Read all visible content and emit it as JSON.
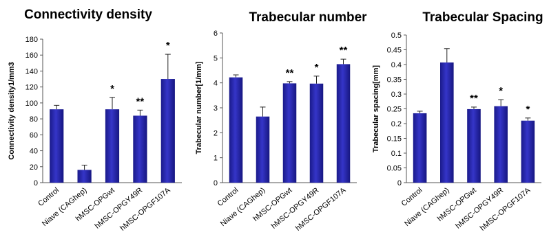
{
  "chart_data": [
    {
      "type": "bar",
      "title": "Connectivity density",
      "ylabel": "Connectivity density1/mm3",
      "categories": [
        "Control",
        "Niave (CAGhep)",
        "hMSC-OPGwt",
        "hMSC-OPGY49R",
        "hMSC-OPGF107A"
      ],
      "values": [
        92,
        16,
        92,
        84,
        130
      ],
      "errors": [
        5,
        6,
        15,
        7,
        31
      ],
      "significance": [
        "",
        "",
        "*",
        "**",
        "*"
      ],
      "ylim": [
        0,
        180
      ],
      "yticks": [
        "0",
        "20",
        "40",
        "60",
        "80",
        "100",
        "120",
        "140",
        "160",
        "180"
      ],
      "grid": false,
      "bar_color": "#1f1f9e"
    },
    {
      "type": "bar",
      "title": "Trabecular number",
      "ylabel": "Trabecular number[1/mm]",
      "categories": [
        "Control",
        "Niave (CAGhep)",
        "hMSC-OPGwt",
        "hMSC-OPGY49R",
        "hMSC-OPGF107A"
      ],
      "values": [
        4.22,
        2.65,
        3.98,
        3.97,
        4.75
      ],
      "errors": [
        0.1,
        0.38,
        0.07,
        0.3,
        0.2
      ],
      "significance": [
        "",
        "",
        "**",
        "*",
        "**"
      ],
      "ylim": [
        0,
        6
      ],
      "yticks": [
        "0",
        "1",
        "2",
        "3",
        "4",
        "5",
        "6"
      ],
      "grid": false,
      "bar_color": "#1f1f9e"
    },
    {
      "type": "bar",
      "title": "Trabecular Spacing",
      "ylabel": "Trabecular spacing[mm]",
      "categories": [
        "Control",
        "Niave (CAGhep)",
        "hMSC-OPGwt",
        "hMSC-OPGY49R",
        "hMSC-OPGF107A"
      ],
      "values": [
        0.235,
        0.407,
        0.249,
        0.259,
        0.21
      ],
      "errors": [
        0.007,
        0.047,
        0.007,
        0.022,
        0.009
      ],
      "significance": [
        "",
        "",
        "**",
        "*",
        "*"
      ],
      "ylim": [
        0,
        0.5
      ],
      "yticks": [
        "0",
        "0.05",
        "0.1",
        "0.15",
        "0.2",
        "0.25",
        "0.3",
        "0.35",
        "0.4",
        "0.45",
        "0.5"
      ],
      "grid": false,
      "bar_color": "#1f1f9e"
    }
  ]
}
